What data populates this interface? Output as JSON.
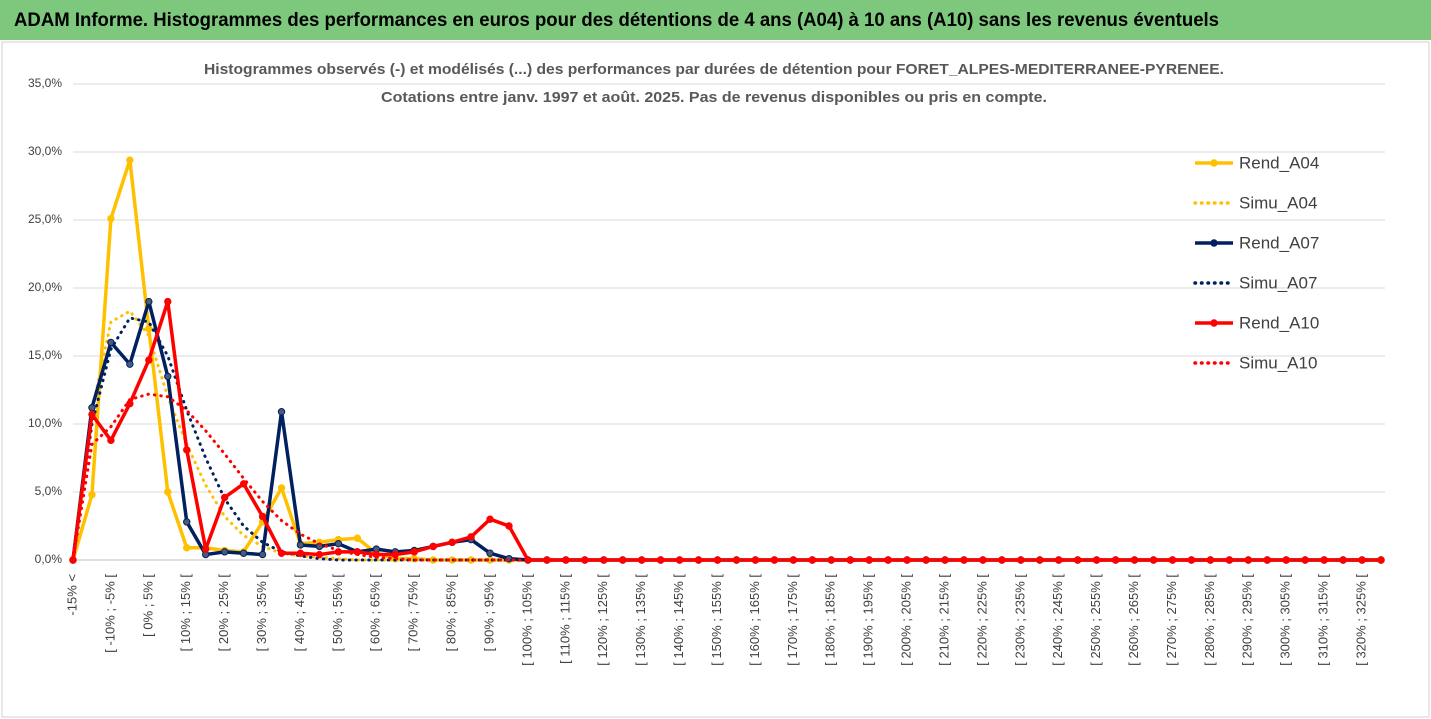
{
  "header": {
    "title": "ADAM Informe. Histogrammes des performances en euros pour des détentions de 4 ans (A04) à 10 ans (A10) sans les revenus éventuels"
  },
  "chart_data": {
    "type": "line",
    "title": "Histogrammes observés (-) et modélisés (...) des performances par durées de détention pour FORET_ALPES-MEDITERRANEE-PYRENEE.",
    "subtitle": "Cotations entre janv. 1997 et août. 2025. Pas de revenus disponibles ou pris en compte.",
    "categories": [
      "-15% <",
      null,
      "[ -10% ; -5% [",
      null,
      "[ 0% ; 5% [",
      null,
      "[ 10% ; 15% [",
      null,
      "[ 20% ; 25% [",
      null,
      "[ 30% ; 35% [",
      null,
      "[ 40% ; 45% [",
      null,
      "[ 50% ; 55% [",
      null,
      "[ 60% ; 65% [",
      null,
      "[ 70% ; 75% [",
      null,
      "[ 80% ; 85% [",
      null,
      "[ 90% ; 95% [",
      null,
      "[ 100% ; 105% [",
      null,
      "[ 110% ; 115% [",
      null,
      "[ 120% ; 125% [",
      null,
      "[ 130% ; 135% [",
      null,
      "[ 140% ; 145% [",
      null,
      "[ 150% ; 155% [",
      null,
      "[ 160% ; 165% [",
      null,
      "[ 170% ; 175% [",
      null,
      "[ 180% ; 185% [",
      null,
      "[ 190% ; 195% [",
      null,
      "[ 200% ; 205% [",
      null,
      "[ 210% ; 215% [",
      null,
      "[ 220% ; 225% [",
      null,
      "[ 230% ; 235% [",
      null,
      "[ 240% ; 245% [",
      null,
      "[ 250% ; 255% [",
      null,
      "[ 260% ; 265% [",
      null,
      "[ 270% ; 275% [",
      null,
      "[ 280% ; 285% [",
      null,
      "[ 290% ; 295% [",
      null,
      "[ 300% ; 305% [",
      null,
      "[ 310% ; 315% [",
      null,
      "[ 320% ; 325% [",
      null
    ],
    "ylim": [
      0,
      35
    ],
    "yticks": [
      {
        "value": 0,
        "label": "0,0%"
      },
      {
        "value": 5,
        "label": "5,0%"
      },
      {
        "value": 10,
        "label": "10,0%"
      },
      {
        "value": 15,
        "label": "15,0%"
      },
      {
        "value": 20,
        "label": "20,0%"
      },
      {
        "value": 25,
        "label": "25,0%"
      },
      {
        "value": 30,
        "label": "30,0%"
      },
      {
        "value": 35,
        "label": "35,0%"
      }
    ],
    "grid": true,
    "legend": "right",
    "series": [
      {
        "name": "Rend_A04",
        "color": "#ffc000",
        "dotted": false,
        "markers": true,
        "values": [
          0,
          4.8,
          25.1,
          29.4,
          17.0,
          5.0,
          0.9,
          0.9,
          0.7,
          0.6,
          2.8,
          5.3,
          1.2,
          1.3,
          1.5,
          1.6,
          0.5,
          0.1,
          0.1,
          0,
          0,
          0,
          0,
          0,
          0,
          0,
          0,
          0,
          0,
          0,
          0,
          0,
          0,
          0,
          0,
          0,
          0,
          0,
          0,
          0,
          0,
          0,
          0,
          0,
          0,
          0,
          0,
          0,
          0,
          0,
          0,
          0,
          0,
          0,
          0,
          0,
          0,
          0,
          0,
          0,
          0,
          0,
          0,
          0,
          0,
          0,
          0,
          0,
          0,
          0
        ]
      },
      {
        "name": "Simu_A04",
        "color": "#ffc000",
        "dotted": true,
        "markers": false,
        "values": [
          0,
          11,
          17.5,
          18.3,
          16.5,
          12,
          8.5,
          5.5,
          3.2,
          1.8,
          1.0,
          0.5,
          0.3,
          0.2,
          0.1,
          0,
          0,
          0,
          0,
          0,
          0,
          0,
          0,
          0,
          0,
          0,
          0,
          0,
          0,
          0,
          0,
          0,
          0,
          0,
          0,
          0,
          0,
          0,
          0,
          0,
          0,
          0,
          0,
          0,
          0,
          0,
          0,
          0,
          0,
          0,
          0,
          0,
          0,
          0,
          0,
          0,
          0,
          0,
          0,
          0,
          0,
          0,
          0,
          0,
          0,
          0,
          0,
          0,
          0,
          0
        ]
      },
      {
        "name": "Rend_A07",
        "color": "#002060",
        "dotted": false,
        "markers": true,
        "values": [
          0,
          11.2,
          16.0,
          14.4,
          19.0,
          13.5,
          2.8,
          0.4,
          0.6,
          0.5,
          0.4,
          10.9,
          1.1,
          1.0,
          1.2,
          0.6,
          0.8,
          0.6,
          0.7,
          1.0,
          1.3,
          1.5,
          0.5,
          0.1,
          0,
          0,
          0,
          0,
          0,
          0,
          0,
          0,
          0,
          0,
          0,
          0,
          0,
          0,
          0,
          0,
          0,
          0,
          0,
          0,
          0,
          0,
          0,
          0,
          0,
          0,
          0,
          0,
          0,
          0,
          0,
          0,
          0,
          0,
          0,
          0,
          0,
          0,
          0,
          0,
          0,
          0,
          0,
          0,
          0,
          0
        ]
      },
      {
        "name": "Simu_A07",
        "color": "#002060",
        "dotted": true,
        "markers": false,
        "values": [
          0,
          10,
          15.5,
          17.8,
          17.5,
          15,
          11,
          7.5,
          4.5,
          2.5,
          1.3,
          0.6,
          0.3,
          0.1,
          0,
          0,
          0,
          0,
          0,
          0,
          0,
          0,
          0,
          0,
          0,
          0,
          0,
          0,
          0,
          0,
          0,
          0,
          0,
          0,
          0,
          0,
          0,
          0,
          0,
          0,
          0,
          0,
          0,
          0,
          0,
          0,
          0,
          0,
          0,
          0,
          0,
          0,
          0,
          0,
          0,
          0,
          0,
          0,
          0,
          0,
          0,
          0,
          0,
          0,
          0,
          0,
          0,
          0,
          0,
          0
        ]
      },
      {
        "name": "Rend_A10",
        "color": "#ff0000",
        "dotted": false,
        "markers": true,
        "values": [
          0,
          10.7,
          8.8,
          11.5,
          14.7,
          19.0,
          8.1,
          0.8,
          4.6,
          5.6,
          3.2,
          0.5,
          0.5,
          0.4,
          0.6,
          0.6,
          0.4,
          0.4,
          0.6,
          1.0,
          1.3,
          1.7,
          3.0,
          2.5,
          0,
          0,
          0,
          0,
          0,
          0,
          0,
          0,
          0,
          0,
          0,
          0,
          0,
          0,
          0,
          0,
          0,
          0,
          0,
          0,
          0,
          0,
          0,
          0,
          0,
          0,
          0,
          0,
          0,
          0,
          0,
          0,
          0,
          0,
          0,
          0,
          0,
          0,
          0,
          0,
          0,
          0,
          0,
          0,
          0,
          0
        ]
      },
      {
        "name": "Simu_A10",
        "color": "#ff0000",
        "dotted": true,
        "markers": false,
        "values": [
          0,
          8.5,
          9.8,
          11.8,
          12.2,
          12.0,
          11,
          9.5,
          7.8,
          6.0,
          4.3,
          2.9,
          1.9,
          1.2,
          0.7,
          0.4,
          0.2,
          0.1,
          0,
          0,
          0,
          0,
          0,
          0,
          0,
          0,
          0,
          0,
          0,
          0,
          0,
          0,
          0,
          0,
          0,
          0,
          0,
          0,
          0,
          0,
          0,
          0,
          0,
          0,
          0,
          0,
          0,
          0,
          0,
          0,
          0,
          0,
          0,
          0,
          0,
          0,
          0,
          0,
          0,
          0,
          0,
          0,
          0,
          0,
          0,
          0,
          0,
          0,
          0,
          0
        ]
      }
    ]
  }
}
